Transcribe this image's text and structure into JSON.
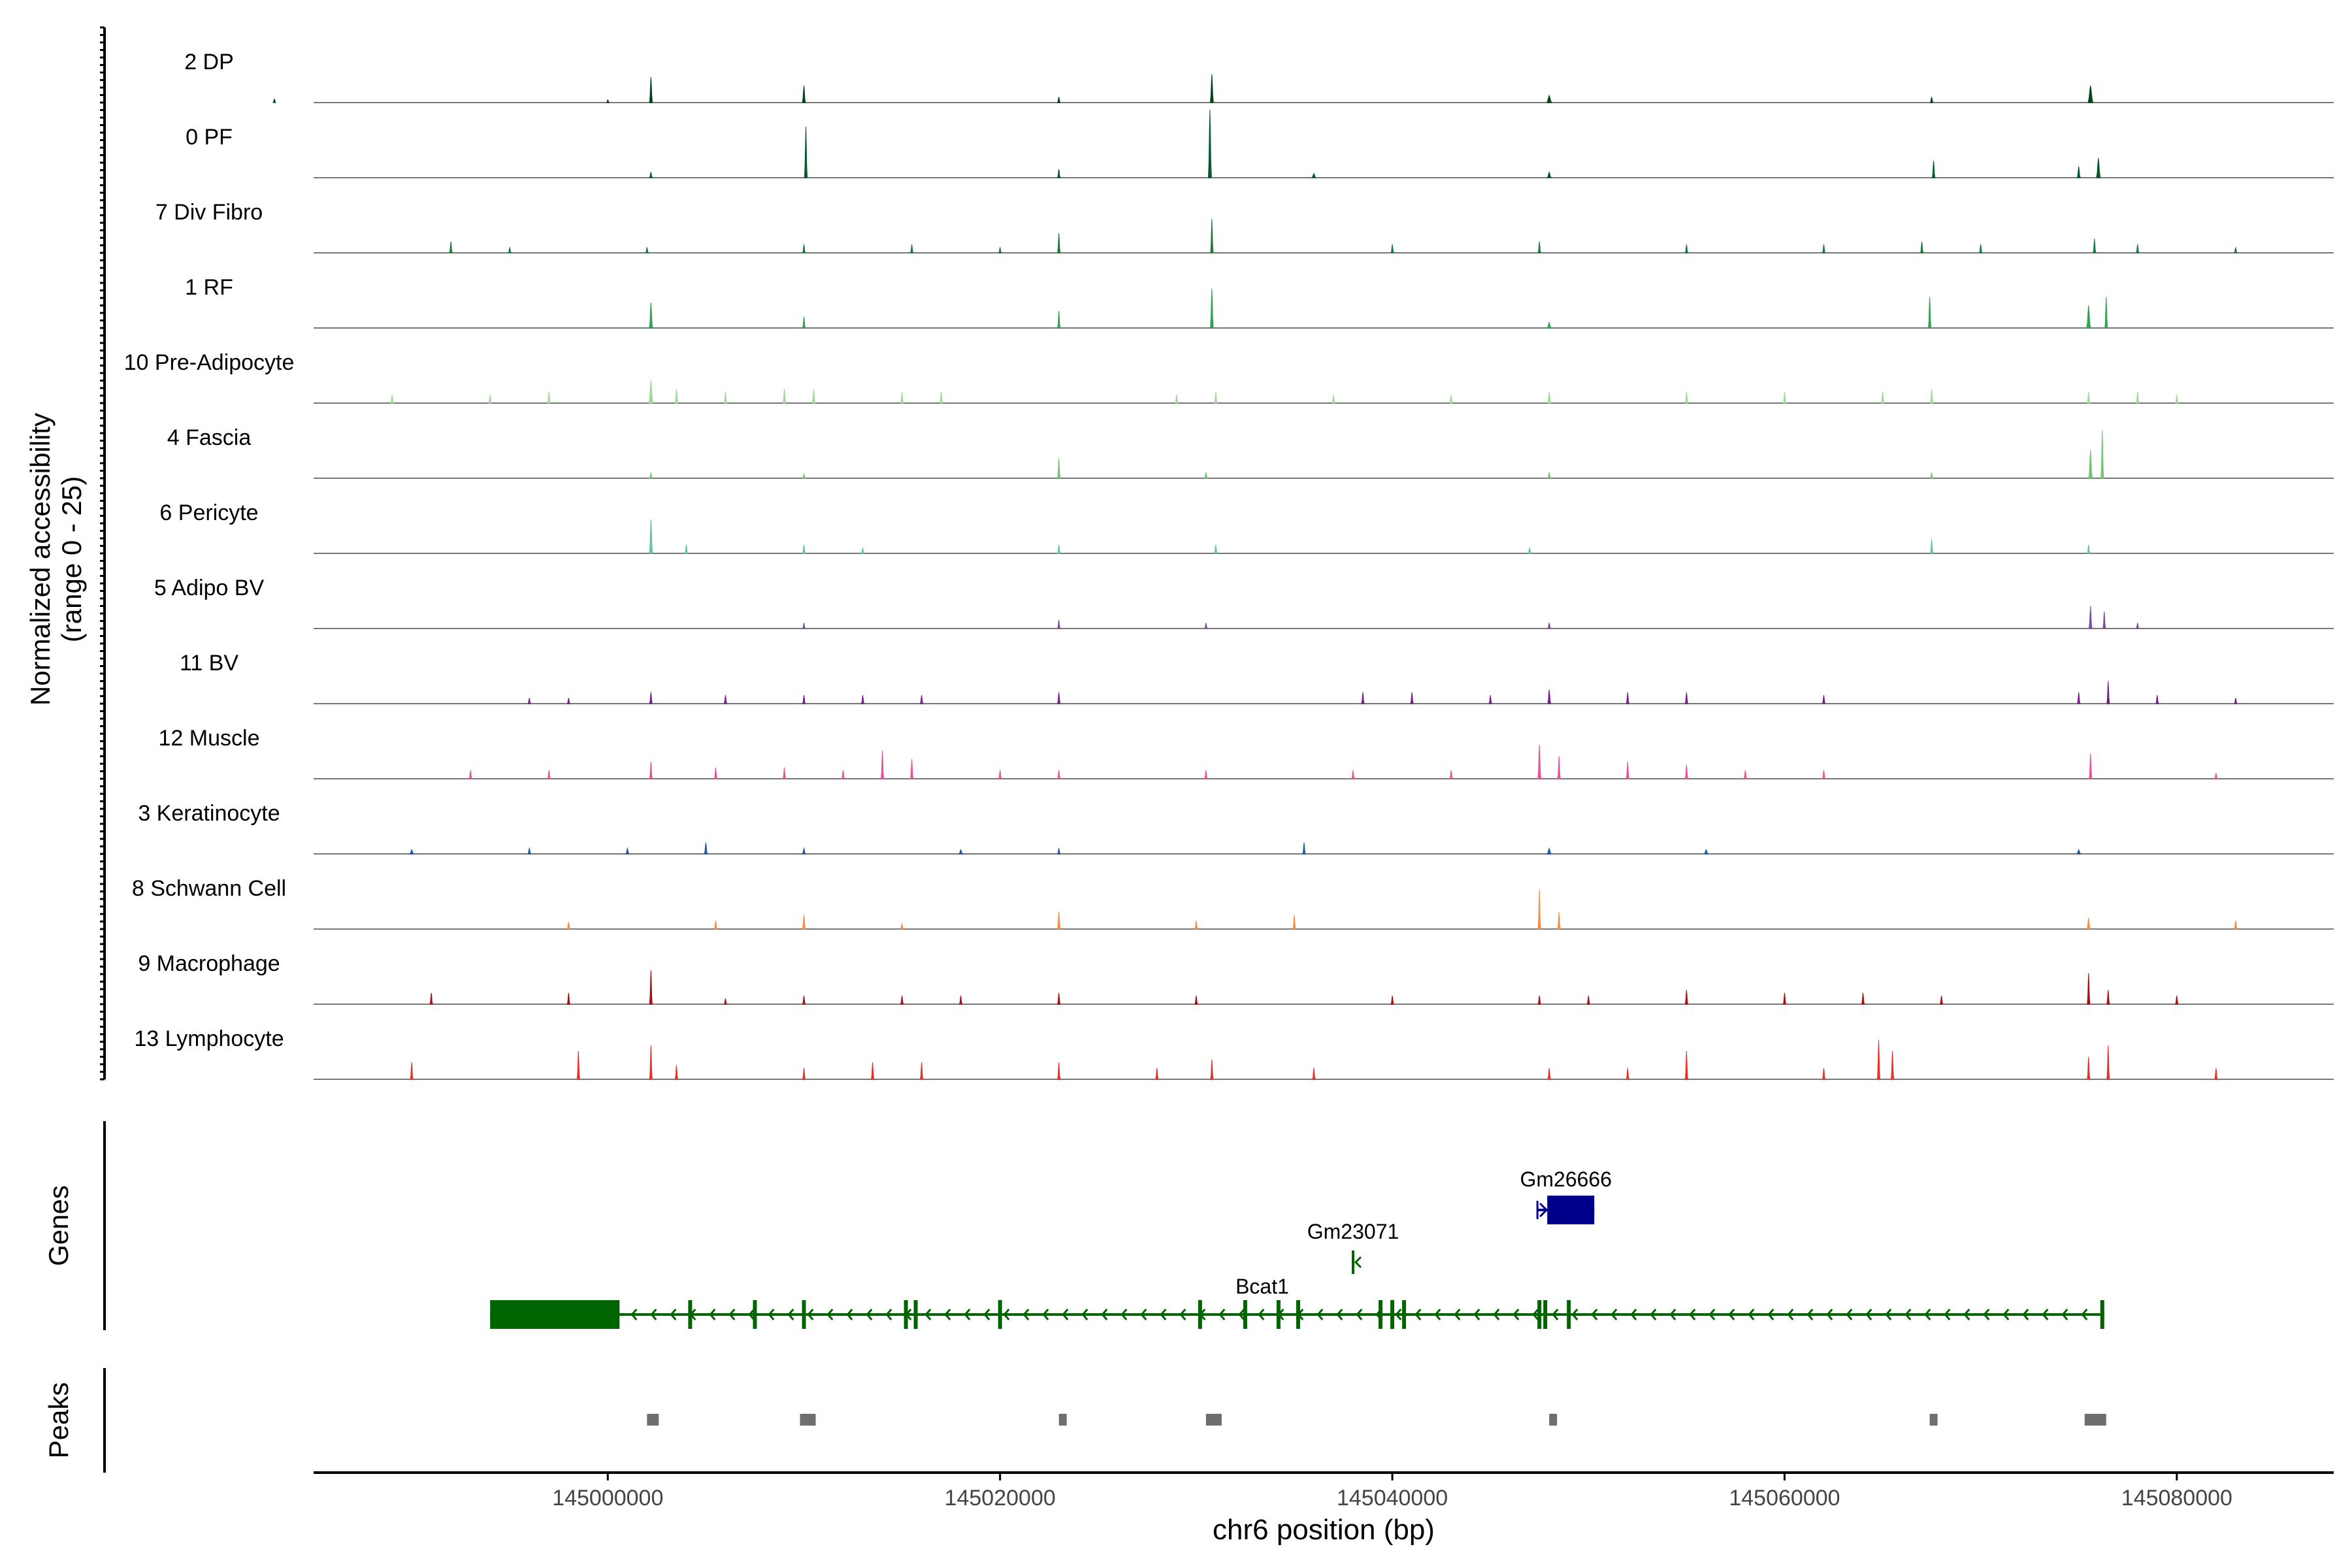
{
  "chart_data": {
    "type": "area",
    "subtype": "genome-browser-coverage",
    "title": "",
    "ylabel_line1": "Normalized accessibility",
    "ylabel_line2": "(range 0 - 25)",
    "xlabel": "chr6 position (bp)",
    "chromosome": "chr6",
    "y_range": [
      0,
      25
    ],
    "x_range": [
      144985000,
      145088000
    ],
    "x_ticks": [
      145000000,
      145020000,
      145040000,
      145060000,
      145080000
    ],
    "x_tick_labels": [
      "145000000",
      "145020000",
      "145040000",
      "145060000",
      "145080000"
    ],
    "series": [
      {
        "name": "2 DP",
        "color": "#00441b",
        "peaks": [
          [
            144983000,
            1.3,
            120
          ],
          [
            145000000,
            1,
            100
          ],
          [
            145002200,
            9,
            150
          ],
          [
            145010000,
            6,
            150
          ],
          [
            145023000,
            2,
            100
          ],
          [
            145030800,
            10,
            160
          ],
          [
            145048000,
            2.5,
            250
          ],
          [
            145067500,
            2,
            100
          ],
          [
            145075600,
            6,
            250
          ]
        ]
      },
      {
        "name": "0 PF",
        "color": "#00592a",
        "peaks": [
          [
            145002200,
            2,
            120
          ],
          [
            145010100,
            18,
            140
          ],
          [
            145023000,
            3,
            100
          ],
          [
            145030700,
            24,
            160
          ],
          [
            145036000,
            1.5,
            200
          ],
          [
            145048000,
            2,
            200
          ],
          [
            145067600,
            6,
            100
          ],
          [
            145075000,
            4,
            150
          ],
          [
            145076000,
            7,
            200
          ]
        ]
      },
      {
        "name": "7 Div Fibro",
        "color": "#1b7a3e",
        "peaks": [
          [
            144992000,
            4,
            80
          ],
          [
            144995000,
            2,
            80
          ],
          [
            145002000,
            2,
            80
          ],
          [
            145010000,
            3,
            80
          ],
          [
            145015500,
            3,
            80
          ],
          [
            145020000,
            2,
            80
          ],
          [
            145023000,
            7,
            120
          ],
          [
            145030800,
            12,
            120
          ],
          [
            145040000,
            3,
            80
          ],
          [
            145047500,
            4,
            80
          ],
          [
            145055000,
            3,
            80
          ],
          [
            145062000,
            3,
            80
          ],
          [
            145067000,
            4,
            80
          ],
          [
            145070000,
            3,
            80
          ],
          [
            145075800,
            5,
            120
          ],
          [
            145078000,
            3,
            80
          ],
          [
            145083000,
            2,
            80
          ]
        ]
      },
      {
        "name": "1 RF",
        "color": "#31a354",
        "peaks": [
          [
            145002200,
            9,
            160
          ],
          [
            145010000,
            4,
            120
          ],
          [
            145023000,
            6,
            100
          ],
          [
            145030800,
            14,
            150
          ],
          [
            145048000,
            2,
            200
          ],
          [
            145067400,
            11,
            100
          ],
          [
            145075500,
            8,
            200
          ],
          [
            145076400,
            11,
            120
          ]
        ]
      },
      {
        "name": "10 Pre-Adipocyte",
        "color": "#a1d99b",
        "peaks": [
          [
            144989000,
            3,
            80
          ],
          [
            144994000,
            3,
            80
          ],
          [
            144997000,
            4,
            80
          ],
          [
            145002200,
            8,
            200
          ],
          [
            145003500,
            5,
            100
          ],
          [
            145006000,
            4,
            100
          ],
          [
            145009000,
            5,
            100
          ],
          [
            145010500,
            5,
            100
          ],
          [
            145015000,
            4,
            100
          ],
          [
            145017000,
            4,
            100
          ],
          [
            145029000,
            3,
            100
          ],
          [
            145031000,
            4,
            100
          ],
          [
            145037000,
            3,
            80
          ],
          [
            145043000,
            3,
            80
          ],
          [
            145048000,
            4,
            150
          ],
          [
            145055000,
            4,
            80
          ],
          [
            145060000,
            4,
            80
          ],
          [
            145065000,
            4,
            80
          ],
          [
            145067500,
            5,
            100
          ],
          [
            145075500,
            4,
            100
          ],
          [
            145078000,
            4,
            80
          ],
          [
            145080000,
            3,
            80
          ]
        ]
      },
      {
        "name": "4 Fascia",
        "color": "#74c476",
        "peaks": [
          [
            145002200,
            2,
            100
          ],
          [
            145010000,
            1.5,
            150
          ],
          [
            145023000,
            7,
            100
          ],
          [
            145030500,
            2,
            150
          ],
          [
            145048000,
            2,
            150
          ],
          [
            145067500,
            2,
            100
          ],
          [
            145075600,
            10,
            180
          ],
          [
            145076200,
            17,
            120
          ]
        ]
      },
      {
        "name": "6 Pericyte",
        "color": "#66c2a4",
        "peaks": [
          [
            145002200,
            12,
            160
          ],
          [
            145004000,
            3,
            120
          ],
          [
            145010000,
            3,
            100
          ],
          [
            145013000,
            2,
            100
          ],
          [
            145023000,
            3,
            100
          ],
          [
            145031000,
            3,
            100
          ],
          [
            145047000,
            2,
            150
          ],
          [
            145067500,
            5,
            100
          ],
          [
            145075500,
            3,
            100
          ]
        ]
      },
      {
        "name": "5 Adipo BV",
        "color": "#7b4fa0",
        "peaks": [
          [
            145010000,
            2,
            80
          ],
          [
            145023000,
            3,
            100
          ],
          [
            145030500,
            2,
            100
          ],
          [
            145048000,
            2,
            150
          ],
          [
            145075600,
            8,
            150
          ],
          [
            145076300,
            6,
            120
          ],
          [
            145078000,
            2,
            80
          ]
        ]
      },
      {
        "name": "11 BV",
        "color": "#7a1c8e",
        "peaks": [
          [
            144996000,
            2,
            60
          ],
          [
            144998000,
            2,
            60
          ],
          [
            145002200,
            4,
            100
          ],
          [
            145006000,
            3,
            60
          ],
          [
            145010000,
            3,
            60
          ],
          [
            145013000,
            3,
            60
          ],
          [
            145016000,
            3,
            60
          ],
          [
            145023000,
            4,
            80
          ],
          [
            145038500,
            4,
            80
          ],
          [
            145041000,
            4,
            80
          ],
          [
            145045000,
            3,
            80
          ],
          [
            145048000,
            5,
            150
          ],
          [
            145052000,
            4,
            80
          ],
          [
            145055000,
            4,
            80
          ],
          [
            145062000,
            3,
            60
          ],
          [
            145075000,
            4,
            80
          ],
          [
            145076500,
            8,
            120
          ],
          [
            145079000,
            3,
            60
          ],
          [
            145083000,
            2,
            60
          ]
        ]
      },
      {
        "name": "12 Muscle",
        "color": "#e7529b",
        "peaks": [
          [
            144993000,
            3,
            80
          ],
          [
            144997000,
            3,
            80
          ],
          [
            145002200,
            6,
            100
          ],
          [
            145005500,
            4,
            80
          ],
          [
            145009000,
            4,
            80
          ],
          [
            145012000,
            3,
            80
          ],
          [
            145014000,
            10,
            80
          ],
          [
            145015500,
            7,
            60
          ],
          [
            145020000,
            3,
            60
          ],
          [
            145023000,
            3,
            60
          ],
          [
            145030500,
            3,
            60
          ],
          [
            145038000,
            3,
            60
          ],
          [
            145043000,
            3,
            60
          ],
          [
            145047500,
            12,
            150
          ],
          [
            145048500,
            8,
            120
          ],
          [
            145052000,
            6,
            80
          ],
          [
            145055000,
            5,
            80
          ],
          [
            145058000,
            3,
            60
          ],
          [
            145062000,
            3,
            60
          ],
          [
            145075600,
            9,
            120
          ],
          [
            145082000,
            2,
            60
          ]
        ]
      },
      {
        "name": "3 Keratinocyte",
        "color": "#1d5c9e",
        "peaks": [
          [
            144990000,
            1.5,
            200
          ],
          [
            144996000,
            2,
            150
          ],
          [
            145001000,
            2,
            150
          ],
          [
            145005000,
            4,
            150
          ],
          [
            145010000,
            2,
            150
          ],
          [
            145018000,
            1.5,
            200
          ],
          [
            145023000,
            2,
            100
          ],
          [
            145035500,
            4,
            100
          ],
          [
            145048000,
            2,
            200
          ],
          [
            145056000,
            1.5,
            200
          ],
          [
            145075000,
            1.5,
            200
          ]
        ]
      },
      {
        "name": "8 Schwann Cell",
        "color": "#fd8d3c",
        "peaks": [
          [
            144998000,
            2.5,
            150
          ],
          [
            145005500,
            3,
            100
          ],
          [
            145010000,
            5,
            150
          ],
          [
            145015000,
            2,
            100
          ],
          [
            145023000,
            6,
            150
          ],
          [
            145030000,
            3,
            100
          ],
          [
            145035000,
            5,
            100
          ],
          [
            145047500,
            14,
            120
          ],
          [
            145048500,
            6,
            100
          ],
          [
            145075500,
            4,
            150
          ],
          [
            145083000,
            3,
            100
          ]
        ]
      },
      {
        "name": "9 Macrophage",
        "color": "#a50f15",
        "peaks": [
          [
            144991000,
            4,
            120
          ],
          [
            144998000,
            4,
            80
          ],
          [
            145002200,
            12,
            100
          ],
          [
            145006000,
            2,
            80
          ],
          [
            145010000,
            3,
            80
          ],
          [
            145015000,
            3,
            80
          ],
          [
            145018000,
            3,
            80
          ],
          [
            145023000,
            4,
            80
          ],
          [
            145030000,
            3,
            80
          ],
          [
            145040000,
            3,
            80
          ],
          [
            145047500,
            3,
            80
          ],
          [
            145050000,
            3,
            100
          ],
          [
            145055000,
            5,
            100
          ],
          [
            145060000,
            4,
            80
          ],
          [
            145064000,
            4,
            80
          ],
          [
            145068000,
            3,
            80
          ],
          [
            145075500,
            11,
            120
          ],
          [
            145076500,
            5,
            100
          ],
          [
            145080000,
            3,
            80
          ]
        ]
      },
      {
        "name": "13 Lymphocyte",
        "color": "#e6322a",
        "peaks": [
          [
            144990000,
            6,
            40
          ],
          [
            144998500,
            10,
            50
          ],
          [
            145002200,
            12,
            80
          ],
          [
            145003500,
            5,
            60
          ],
          [
            145010000,
            4,
            40
          ],
          [
            145013500,
            6,
            40
          ],
          [
            145016000,
            6,
            40
          ],
          [
            145023000,
            6,
            60
          ],
          [
            145028000,
            4,
            40
          ],
          [
            145030800,
            7,
            60
          ],
          [
            145036000,
            4,
            40
          ],
          [
            145048000,
            4,
            40
          ],
          [
            145052000,
            4,
            40
          ],
          [
            145055000,
            10,
            40
          ],
          [
            145062000,
            4,
            40
          ],
          [
            145064800,
            14,
            80
          ],
          [
            145065500,
            10,
            60
          ],
          [
            145075500,
            8,
            60
          ],
          [
            145076500,
            12,
            60
          ],
          [
            145082000,
            4,
            40
          ]
        ]
      }
    ],
    "genes": [
      {
        "name": "Bcat1",
        "strand": "-",
        "start": 144994000,
        "end": 145076300,
        "color": "#006400",
        "utr_end": 145000500,
        "exons": [
          145000500,
          145004200,
          145007500,
          145010000,
          145015200,
          145015700,
          145020000,
          145030200,
          145032500,
          145034200,
          145035200,
          145039400,
          145040000,
          145040600,
          145047500,
          145047800,
          145049000,
          145076200
        ]
      },
      {
        "name": "Gm23071",
        "strand": "-",
        "start": 145038000,
        "end": 145038300,
        "color": "#006400",
        "exons": []
      },
      {
        "name": "Gm26666",
        "strand": "+",
        "start": 145047400,
        "end": 145050300,
        "color": "#00008b",
        "exons": []
      }
    ],
    "peaks_track": [
      [
        145002000,
        145002600
      ],
      [
        145009800,
        145010600
      ],
      [
        145023000,
        145023300
      ],
      [
        145030500,
        145031300
      ],
      [
        145048000,
        145048400
      ],
      [
        145067400,
        145067800
      ],
      [
        145075300,
        145076400
      ]
    ],
    "track_labels": {
      "genes": "Genes",
      "peaks": "Peaks"
    }
  }
}
